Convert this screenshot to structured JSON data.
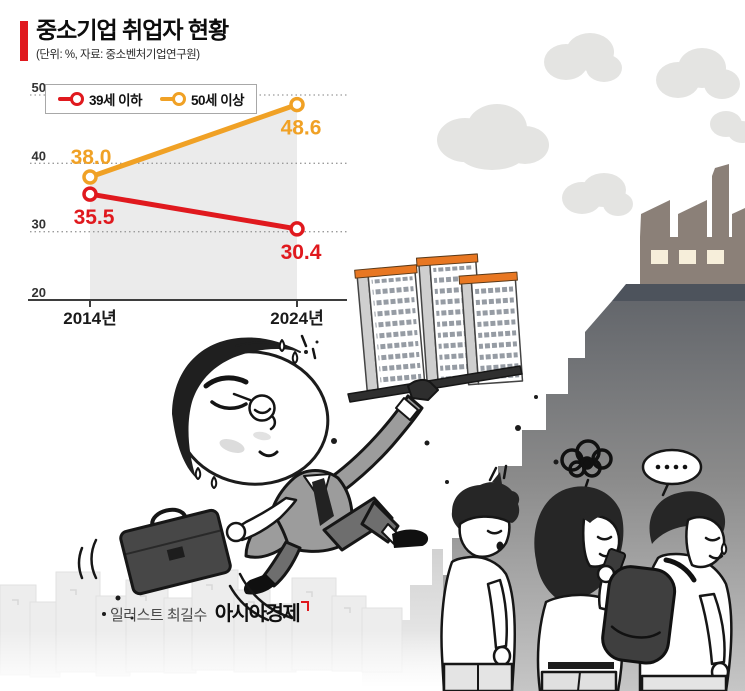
{
  "header": {
    "title": "중소기업 취업자 현황",
    "subtitle": "(단위: %, 자료: 중소벤처기업연구원)",
    "accent_color": "#e0191e"
  },
  "chart_data": {
    "type": "line",
    "title": "중소기업 취업자 현황",
    "unit": "%",
    "source": "중소벤처기업연구원",
    "categories": [
      "2014년",
      "2024년"
    ],
    "series": [
      {
        "name": "39세 이하",
        "color": "#e0191e",
        "values": [
          35.5,
          30.4
        ],
        "value_labels": [
          "35.5",
          "30.4"
        ],
        "label_placement": [
          "below",
          "below"
        ]
      },
      {
        "name": "50세 이상",
        "color": "#f0a125",
        "values": [
          38.0,
          48.6
        ],
        "value_labels": [
          "38.0",
          "48.6"
        ],
        "label_placement": [
          "above",
          "below"
        ]
      }
    ],
    "ylim": [
      20,
      50
    ],
    "yticks": [
      20,
      30,
      40,
      50
    ],
    "grid": "dotted horizontal",
    "legend_position": "top-left boxed",
    "shade_under": "50세 이상",
    "shade_color": "#ebebeb"
  },
  "caption": {
    "prefix": "일러스트 최길수",
    "brand": "아시아경제"
  }
}
